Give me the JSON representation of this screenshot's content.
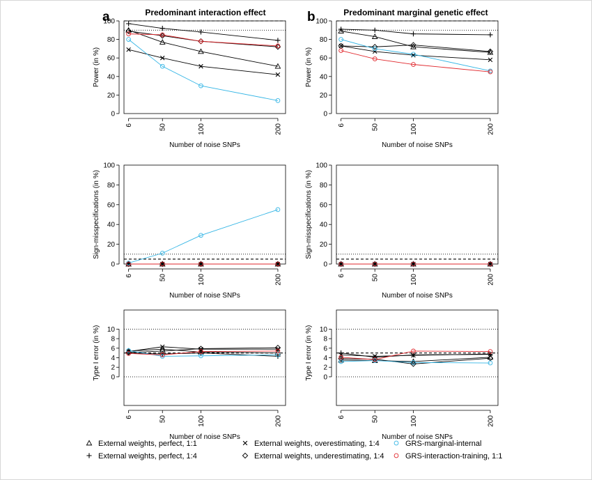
{
  "figure": {
    "panel_a_letter": "a",
    "panel_b_letter": "b",
    "panel_a_title": "Predominant interaction effect",
    "panel_b_title": "Predominant marginal genetic effect"
  },
  "styles": {
    "triangle": {
      "marker": "triangle",
      "color": "#000000"
    },
    "plus": {
      "marker": "plus",
      "color": "#000000"
    },
    "cross": {
      "marker": "cross",
      "color": "#000000"
    },
    "diamond": {
      "marker": "diamond",
      "color": "#000000"
    },
    "circle_cyan": {
      "marker": "circle",
      "color": "#33b5e5"
    },
    "circle_red": {
      "marker": "circle",
      "color": "#e0262b"
    }
  },
  "legend": [
    {
      "label": "External weights, perfect, 1:1",
      "style": "triangle"
    },
    {
      "label": "External weights, perfect, 1:4",
      "style": "plus"
    },
    {
      "label": "External weights, overestimating, 1:4",
      "style": "cross"
    },
    {
      "label": "External weights, underestimating, 1:4",
      "style": "diamond"
    },
    {
      "label": "GRS-marginal-internal",
      "style": "circle_cyan"
    },
    {
      "label": "GRS-interaction-training, 1:1",
      "style": "circle_red"
    }
  ],
  "chart_data": [
    {
      "type": "line",
      "title": "Predominant interaction effect",
      "xlabel": "Number of noise SNPs",
      "ylabel": "Power (in %)",
      "x": [
        6,
        50,
        100,
        200
      ],
      "xlim": [
        0,
        210
      ],
      "ylim": [
        0,
        100
      ],
      "yticks": [
        0,
        20,
        40,
        60,
        80,
        100
      ],
      "hlines": [
        {
          "y": 100,
          "style": "dashed"
        },
        {
          "y": 90,
          "style": "dotted"
        }
      ],
      "series": [
        {
          "name": "External weights, perfect, 1:1",
          "style": "triangle",
          "values": [
            90,
            77,
            67,
            51
          ]
        },
        {
          "name": "External weights, perfect, 1:4",
          "style": "plus",
          "values": [
            97,
            92,
            88,
            79
          ]
        },
        {
          "name": "External weights, overestimating, 1:4",
          "style": "cross",
          "values": [
            69,
            60,
            51,
            42
          ]
        },
        {
          "name": "External weights, underestimating, 1:4",
          "style": "diamond",
          "values": [
            89,
            84,
            78,
            72
          ]
        },
        {
          "name": "GRS-marginal-internal",
          "style": "circle_cyan",
          "values": [
            80,
            51,
            30,
            14
          ]
        },
        {
          "name": "GRS-interaction-training, 1:1",
          "style": "circle_red",
          "values": [
            86,
            85,
            78,
            73
          ]
        }
      ]
    },
    {
      "type": "line",
      "title": "Predominant marginal genetic effect",
      "xlabel": "Number of noise SNPs",
      "ylabel": "Power (in %)",
      "x": [
        6,
        50,
        100,
        200
      ],
      "xlim": [
        0,
        210
      ],
      "ylim": [
        0,
        100
      ],
      "yticks": [
        0,
        20,
        40,
        60,
        80,
        100
      ],
      "hlines": [
        {
          "y": 100,
          "style": "dashed"
        },
        {
          "y": 90,
          "style": "dotted"
        }
      ],
      "series": [
        {
          "name": "External weights, perfect, 1:1",
          "style": "triangle",
          "values": [
            89,
            83,
            72,
            66
          ]
        },
        {
          "name": "External weights, perfect, 1:4",
          "style": "plus",
          "values": [
            91,
            90,
            86,
            85
          ]
        },
        {
          "name": "External weights, overestimating, 1:4",
          "style": "cross",
          "values": [
            73,
            67,
            63,
            58
          ]
        },
        {
          "name": "External weights, underestimating, 1:4",
          "style": "diamond",
          "values": [
            73,
            72,
            74,
            67
          ]
        },
        {
          "name": "GRS-marginal-internal",
          "style": "circle_cyan",
          "values": [
            80,
            70,
            64,
            46
          ]
        },
        {
          "name": "GRS-interaction-training, 1:1",
          "style": "circle_red",
          "values": [
            68,
            59,
            53,
            45
          ]
        }
      ]
    },
    {
      "type": "line",
      "title": "",
      "xlabel": "Number of noise SNPs",
      "ylabel": "Sign-misspecifications (in %)",
      "x": [
        6,
        50,
        100,
        200
      ],
      "xlim": [
        0,
        210
      ],
      "ylim": [
        0,
        100
      ],
      "yticks": [
        0,
        20,
        40,
        60,
        80,
        100
      ],
      "hlines": [
        {
          "y": 5,
          "style": "dashed"
        },
        {
          "y": 10,
          "style": "dotted"
        }
      ],
      "series": [
        {
          "name": "External weights, perfect, 1:1",
          "style": "triangle",
          "values": [
            0,
            0,
            0,
            0
          ]
        },
        {
          "name": "External weights, perfect, 1:4",
          "style": "plus",
          "values": [
            0,
            0,
            0,
            0
          ]
        },
        {
          "name": "External weights, overestimating, 1:4",
          "style": "cross",
          "values": [
            0,
            0,
            0,
            0
          ]
        },
        {
          "name": "External weights, underestimating, 1:4",
          "style": "diamond",
          "values": [
            0,
            0,
            0,
            0
          ]
        },
        {
          "name": "GRS-marginal-internal",
          "style": "circle_cyan",
          "values": [
            1,
            11,
            29,
            55
          ]
        },
        {
          "name": "GRS-interaction-training, 1:1",
          "style": "circle_red",
          "values": [
            0,
            0,
            0,
            0
          ]
        }
      ]
    },
    {
      "type": "line",
      "title": "",
      "xlabel": "Number of noise SNPs",
      "ylabel": "Sign-misspecifications (in %)",
      "x": [
        6,
        50,
        100,
        200
      ],
      "xlim": [
        0,
        210
      ],
      "ylim": [
        0,
        100
      ],
      "yticks": [
        0,
        20,
        40,
        60,
        80,
        100
      ],
      "hlines": [
        {
          "y": 5,
          "style": "dashed"
        },
        {
          "y": 10,
          "style": "dotted"
        }
      ],
      "series": [
        {
          "name": "External weights, perfect, 1:1",
          "style": "triangle",
          "values": [
            0,
            0,
            0,
            0
          ]
        },
        {
          "name": "External weights, perfect, 1:4",
          "style": "plus",
          "values": [
            0,
            0,
            0,
            0
          ]
        },
        {
          "name": "External weights, overestimating, 1:4",
          "style": "cross",
          "values": [
            0,
            0,
            0,
            0
          ]
        },
        {
          "name": "External weights, underestimating, 1:4",
          "style": "diamond",
          "values": [
            0,
            0,
            0,
            0
          ]
        },
        {
          "name": "GRS-marginal-internal",
          "style": "circle_cyan",
          "values": [
            0,
            0,
            0,
            0
          ]
        },
        {
          "name": "GRS-interaction-training, 1:1",
          "style": "circle_red",
          "values": [
            0,
            0,
            0,
            0
          ]
        }
      ]
    },
    {
      "type": "line",
      "title": "",
      "xlabel": "Number of noise SNPs",
      "ylabel": "Type I error (in %)",
      "x": [
        6,
        50,
        100,
        200
      ],
      "xlim": [
        0,
        210
      ],
      "ylim": [
        -6,
        14
      ],
      "yticks": [
        0,
        2,
        4,
        6,
        8,
        10
      ],
      "hlines": [
        {
          "y": 10,
          "style": "dotted"
        },
        {
          "y": 5,
          "style": "dashed"
        },
        {
          "y": 0,
          "style": "dotted"
        }
      ],
      "series": [
        {
          "name": "External weights, perfect, 1:1",
          "style": "triangle",
          "values": [
            5.4,
            5.8,
            5.2,
            5.0
          ]
        },
        {
          "name": "External weights, perfect, 1:4",
          "style": "plus",
          "values": [
            5.0,
            4.8,
            5.0,
            4.3
          ]
        },
        {
          "name": "External weights, overestimating, 1:4",
          "style": "cross",
          "values": [
            5.3,
            6.3,
            5.8,
            5.8
          ]
        },
        {
          "name": "External weights, underestimating, 1:4",
          "style": "diamond",
          "values": [
            5.1,
            5.4,
            5.9,
            6.1
          ]
        },
        {
          "name": "GRS-marginal-internal",
          "style": "circle_cyan",
          "values": [
            5.5,
            4.3,
            4.4,
            4.6
          ]
        },
        {
          "name": "GRS-interaction-training, 1:1",
          "style": "circle_red",
          "values": [
            4.9,
            4.6,
            5.3,
            5.4
          ]
        }
      ]
    },
    {
      "type": "line",
      "title": "",
      "xlabel": "Number of noise SNPs",
      "ylabel": "Type I error (in %)",
      "x": [
        6,
        50,
        100,
        200
      ],
      "xlim": [
        0,
        210
      ],
      "ylim": [
        -6,
        14
      ],
      "yticks": [
        0,
        2,
        4,
        6,
        8,
        10
      ],
      "hlines": [
        {
          "y": 10,
          "style": "dotted"
        },
        {
          "y": 5,
          "style": "dashed"
        },
        {
          "y": 0,
          "style": "dotted"
        }
      ],
      "series": [
        {
          "name": "External weights, perfect, 1:1",
          "style": "triangle",
          "values": [
            3.5,
            3.4,
            3.2,
            4.1
          ]
        },
        {
          "name": "External weights, perfect, 1:4",
          "style": "plus",
          "values": [
            5.0,
            4.1,
            4.6,
            4.7
          ]
        },
        {
          "name": "External weights, overestimating, 1:4",
          "style": "cross",
          "values": [
            4.6,
            4.3,
            4.5,
            4.8
          ]
        },
        {
          "name": "External weights, underestimating, 1:4",
          "style": "diamond",
          "values": [
            3.8,
            3.7,
            2.7,
            3.9
          ]
        },
        {
          "name": "GRS-marginal-internal",
          "style": "circle_cyan",
          "values": [
            3.2,
            3.4,
            3.0,
            2.9
          ]
        },
        {
          "name": "GRS-interaction-training, 1:1",
          "style": "circle_red",
          "values": [
            4.1,
            3.6,
            5.4,
            5.3
          ]
        }
      ]
    }
  ]
}
